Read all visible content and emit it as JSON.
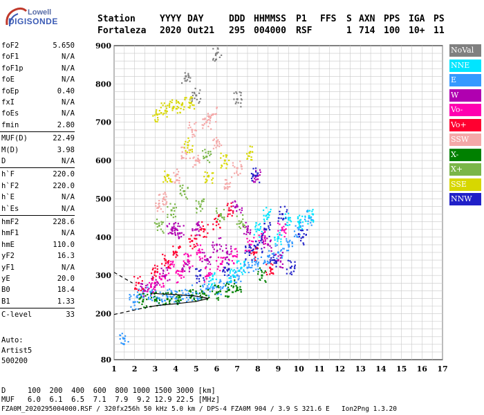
{
  "logo": {
    "line1": "Lowell",
    "line2": "DIGISONDE"
  },
  "header": {
    "labels": [
      "Station",
      "YYYY",
      "DAY",
      "DDD",
      "HHMMSS",
      "P1",
      "FFS",
      "S",
      "AXN",
      "PPS",
      "IGA",
      "PS"
    ],
    "values": [
      "Fortaleza",
      "2020",
      "Out21",
      "295",
      "004000",
      "RSF",
      "",
      "1",
      "714",
      "100",
      "10+",
      "11"
    ]
  },
  "params": [
    [
      {
        "k": "foF2",
        "v": "5.650"
      },
      {
        "k": "foF1",
        "v": "N/A"
      },
      {
        "k": "foF1p",
        "v": "N/A"
      },
      {
        "k": "foE",
        "v": "N/A"
      },
      {
        "k": "foEp",
        "v": "0.40"
      },
      {
        "k": "fxI",
        "v": "N/A"
      },
      {
        "k": "foEs",
        "v": "N/A"
      },
      {
        "k": "fmin",
        "v": "2.80"
      }
    ],
    [
      {
        "k": "MUF(D)",
        "v": "22.49"
      },
      {
        "k": "M(D)",
        "v": "3.98"
      },
      {
        "k": "D",
        "v": "N/A"
      }
    ],
    [
      {
        "k": "h`F",
        "v": "220.0"
      },
      {
        "k": "h`F2",
        "v": "220.0"
      },
      {
        "k": "h`E",
        "v": "N/A"
      },
      {
        "k": "h`Es",
        "v": "N/A"
      }
    ],
    [
      {
        "k": "hmF2",
        "v": "228.6"
      },
      {
        "k": "hmF1",
        "v": "N/A"
      },
      {
        "k": "hmE",
        "v": "110.0"
      },
      {
        "k": "yF2",
        "v": "16.3"
      },
      {
        "k": "yF1",
        "v": "N/A"
      },
      {
        "k": "yE",
        "v": "20.0"
      },
      {
        "k": "B0",
        "v": "18.4"
      },
      {
        "k": "B1",
        "v": "1.33"
      }
    ],
    [
      {
        "k": "C-level",
        "v": "33"
      }
    ]
  ],
  "auto": {
    "line1": "Auto:",
    "line2": "Artist5",
    "line3": "500200"
  },
  "legend": [
    {
      "label": "NoVal",
      "color": "#808080"
    },
    {
      "label": "NNE",
      "color": "#00e5ff"
    },
    {
      "label": "E",
      "color": "#3399ff"
    },
    {
      "label": "W",
      "color": "#b000b0"
    },
    {
      "label": "Vo-",
      "color": "#ff00b0"
    },
    {
      "label": "Vo+",
      "color": "#ff0030"
    },
    {
      "label": "SSW",
      "color": "#f4a8a8"
    },
    {
      "label": "X-",
      "color": "#008000"
    },
    {
      "label": "X+",
      "color": "#7ab648"
    },
    {
      "label": "SSE",
      "color": "#d7d700"
    },
    {
      "label": "NNW",
      "color": "#2020c8"
    }
  ],
  "footer": {
    "d_row": "D     100  200  400  600  800 1000 1500 3000 [km]",
    "muf_row": "MUF   6.0  6.1  6.5  7.1  7.9  9.2 12.9 22.5 [MHz]",
    "file_row": "FZA0M_2020295004000.RSF / 320fx256h 50 kHz 5.0 km / DPS-4 FZA0M 904 / 3.9 S 321.6 E   Ion2Png 1.3.20"
  },
  "chart_data": {
    "type": "scatter",
    "xlabel": "",
    "ylabel": "",
    "xlim": [
      1,
      17
    ],
    "ylim": [
      80,
      900
    ],
    "x_ticks": [
      1,
      2,
      3,
      4,
      5,
      6,
      7,
      8,
      9,
      10,
      11,
      12,
      13,
      14,
      15,
      16,
      17
    ],
    "y_ticks": [
      80,
      200,
      300,
      400,
      500,
      600,
      700,
      800,
      900
    ],
    "grid": true,
    "legend_position": "right",
    "series": [
      {
        "name": "E",
        "points": [
          [
            1.95,
            230
          ],
          [
            2.3,
            250
          ],
          [
            2.8,
            255
          ],
          [
            3.2,
            240
          ],
          [
            3.6,
            245
          ],
          [
            4.0,
            240
          ],
          [
            4.5,
            250
          ],
          [
            5.0,
            255
          ],
          [
            5.5,
            265
          ],
          [
            6.0,
            270
          ],
          [
            6.5,
            280
          ],
          [
            7.0,
            300
          ],
          [
            7.5,
            320
          ],
          [
            8.0,
            330
          ],
          [
            8.5,
            350
          ],
          [
            9.0,
            360
          ],
          [
            9.5,
            380
          ],
          [
            10.0,
            420
          ],
          [
            10.5,
            450
          ],
          [
            1.5,
            135
          ]
        ]
      },
      {
        "name": "NNE",
        "points": [
          [
            8.0,
            420
          ],
          [
            8.5,
            460
          ],
          [
            9.0,
            400
          ],
          [
            9.5,
            450
          ],
          [
            10.0,
            440
          ],
          [
            10.5,
            455
          ],
          [
            6.8,
            300
          ],
          [
            7.2,
            320
          ],
          [
            5.8,
            290
          ]
        ]
      },
      {
        "name": "W",
        "points": [
          [
            2.5,
            260
          ],
          [
            3.0,
            280
          ],
          [
            3.5,
            300
          ],
          [
            4.0,
            420
          ],
          [
            4.5,
            330
          ],
          [
            5.0,
            420
          ],
          [
            5.5,
            340
          ],
          [
            6.0,
            380
          ],
          [
            6.5,
            360
          ],
          [
            7.0,
            480
          ],
          [
            7.5,
            420
          ],
          [
            8.0,
            560
          ],
          [
            8.5,
            380
          ],
          [
            9.0,
            340
          ],
          [
            3.8,
            420
          ],
          [
            4.2,
            410
          ]
        ]
      },
      {
        "name": "Vo-",
        "points": [
          [
            2.8,
            270
          ],
          [
            3.3,
            290
          ],
          [
            3.7,
            320
          ],
          [
            4.2,
            300
          ],
          [
            4.6,
            340
          ],
          [
            5.2,
            360
          ],
          [
            5.6,
            300
          ],
          [
            6.2,
            330
          ],
          [
            6.8,
            350
          ],
          [
            7.6,
            380
          ],
          [
            8.2,
            400
          ],
          [
            9.2,
            420
          ]
        ]
      },
      {
        "name": "Vo+",
        "points": [
          [
            2.2,
            280
          ],
          [
            3.0,
            310
          ],
          [
            3.5,
            340
          ],
          [
            4.0,
            360
          ],
          [
            4.8,
            390
          ],
          [
            5.4,
            420
          ],
          [
            6.0,
            440
          ],
          [
            6.6,
            470
          ],
          [
            7.8,
            360
          ],
          [
            8.6,
            320
          ]
        ]
      },
      {
        "name": "SSW",
        "points": [
          [
            3.4,
            500
          ],
          [
            4.0,
            560
          ],
          [
            4.5,
            620
          ],
          [
            5.0,
            600
          ],
          [
            5.5,
            700
          ],
          [
            6.0,
            650
          ],
          [
            6.5,
            540
          ],
          [
            7.0,
            580
          ],
          [
            5.8,
            720
          ],
          [
            4.8,
            680
          ],
          [
            3.2,
            480
          ]
        ]
      },
      {
        "name": "X-",
        "points": [
          [
            2.4,
            232
          ],
          [
            3.0,
            236
          ],
          [
            3.6,
            238
          ],
          [
            4.2,
            243
          ],
          [
            4.8,
            248
          ],
          [
            5.4,
            252
          ],
          [
            6.0,
            255
          ],
          [
            6.6,
            262
          ],
          [
            7.0,
            268
          ],
          [
            8.2,
            300
          ]
        ]
      },
      {
        "name": "X+",
        "points": [
          [
            3.2,
            430
          ],
          [
            3.8,
            470
          ],
          [
            4.4,
            520
          ],
          [
            5.2,
            480
          ],
          [
            6.2,
            460
          ],
          [
            7.2,
            440
          ],
          [
            5.5,
            610
          ]
        ]
      },
      {
        "name": "SSE",
        "points": [
          [
            3.1,
            720
          ],
          [
            3.5,
            730
          ],
          [
            3.9,
            740
          ],
          [
            4.3,
            745
          ],
          [
            4.7,
            750
          ],
          [
            3.6,
            560
          ],
          [
            4.6,
            640
          ],
          [
            5.6,
            560
          ],
          [
            7.6,
            620
          ],
          [
            6.4,
            600
          ]
        ]
      },
      {
        "name": "NNW",
        "points": [
          [
            7.6,
            360
          ],
          [
            8.0,
            380
          ],
          [
            8.4,
            420
          ],
          [
            8.8,
            340
          ],
          [
            9.2,
            460
          ],
          [
            9.6,
            320
          ],
          [
            10.2,
            400
          ],
          [
            6.4,
            320
          ],
          [
            5.2,
            300
          ],
          [
            7.9,
            560
          ]
        ]
      },
      {
        "name": "NoVal",
        "points": [
          [
            4.5,
            820
          ],
          [
            5.0,
            770
          ],
          [
            6.0,
            880
          ],
          [
            7.0,
            760
          ]
        ]
      }
    ]
  }
}
